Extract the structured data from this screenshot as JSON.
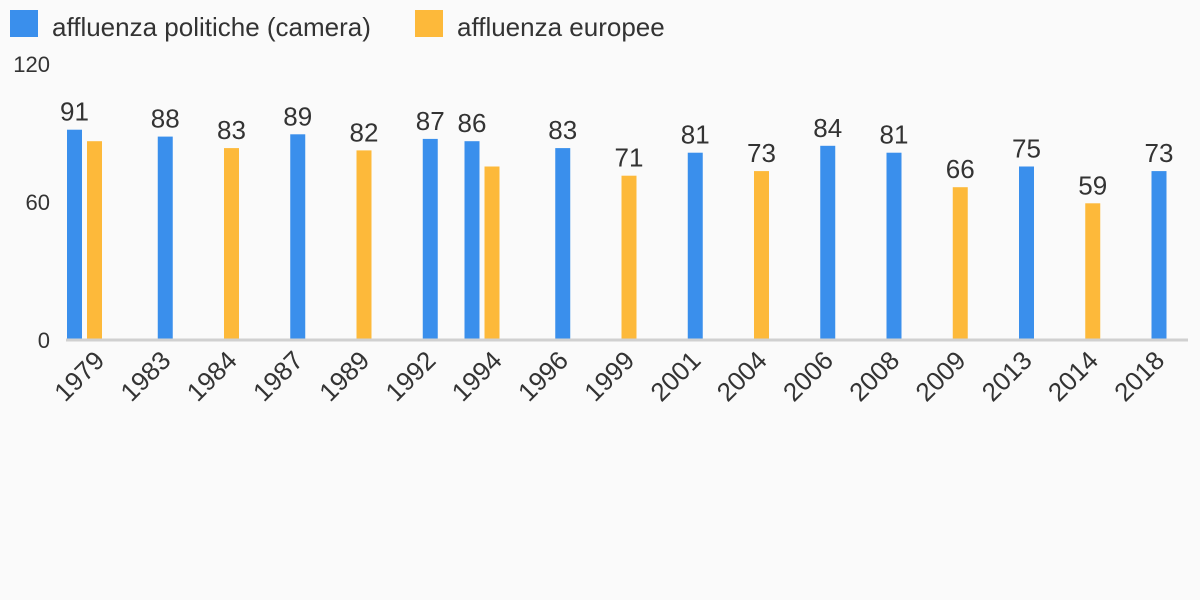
{
  "chart_data": {
    "type": "bar",
    "title": "",
    "xlabel": "",
    "ylabel": "",
    "ylim": [
      0,
      120
    ],
    "yticks": [
      0,
      60,
      120
    ],
    "grid": false,
    "legend_position": "top-left",
    "categories": [
      "1979",
      "1983",
      "1984",
      "1987",
      "1989",
      "1992",
      "1994",
      "1996",
      "1999",
      "2001",
      "2004",
      "2006",
      "2008",
      "2009",
      "2013",
      "2014",
      "2018"
    ],
    "series": [
      {
        "name": "affluenza politiche (camera)",
        "color": "#3a8fec",
        "values": [
          91,
          88,
          null,
          89,
          null,
          87,
          86,
          83,
          null,
          81,
          null,
          84,
          81,
          null,
          75,
          null,
          73
        ]
      },
      {
        "name": "affluenza europee",
        "color": "#fdb93a",
        "values": [
          86,
          null,
          83,
          null,
          82,
          null,
          75,
          null,
          71,
          null,
          73,
          null,
          null,
          66,
          null,
          59,
          null
        ]
      }
    ]
  },
  "colors": {
    "background": "#fafafa",
    "axis": "#d0d0d0",
    "text": "#333333"
  }
}
